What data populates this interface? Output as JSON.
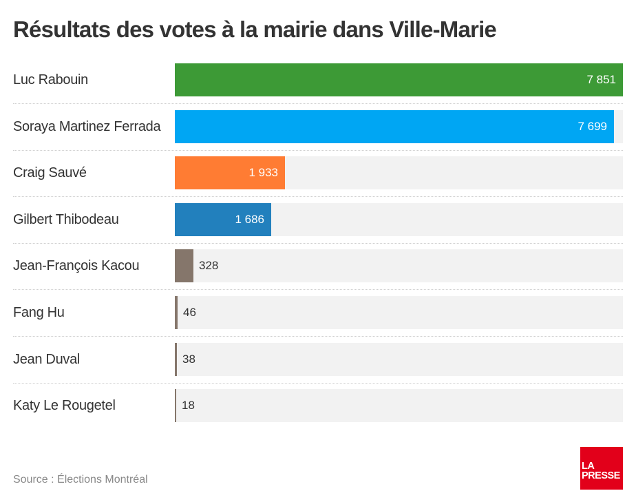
{
  "chart_data": {
    "type": "bar",
    "orientation": "horizontal",
    "title": "Résultats des votes à la mairie dans Ville-Marie",
    "xlabel": "",
    "ylabel": "",
    "xlim": [
      0,
      7851
    ],
    "grid": false,
    "legend": "none",
    "categories": [
      "Luc Rabouin",
      "Soraya Martinez Ferrada",
      "Craig Sauvé",
      "Gilbert Thibodeau",
      "Jean-François Kacou",
      "Fang Hu",
      "Jean Duval",
      "Katy Le Rougetel"
    ],
    "values": [
      7851,
      7699,
      1933,
      1686,
      328,
      46,
      38,
      18
    ],
    "value_labels": [
      "7 851",
      "7 699",
      "1 933",
      "1 686",
      "328",
      "46",
      "38",
      "18"
    ],
    "colors": [
      "#3d9a36",
      "#00a6f3",
      "#ff7c33",
      "#2280bd",
      "#85766b",
      "#85766b",
      "#85766b",
      "#85766b"
    ],
    "track_color": "#f2f2f2"
  },
  "footer": {
    "source": "Source : Élections Montréal",
    "logo_line1": "LA",
    "logo_line2": "PRESSE"
  }
}
